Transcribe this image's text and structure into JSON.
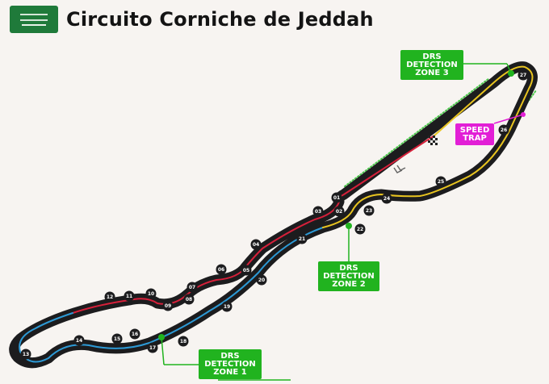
{
  "header": {
    "title": "Circuito Corniche de Jeddah",
    "flag": "saudi-arabia-flag"
  },
  "colors": {
    "track": "#1c1c1e",
    "sector1": "#d6203a",
    "sector2": "#2d9ad6",
    "sector3": "#e8c420",
    "drs": "#21b31f",
    "speed_trap": "#e21fd6",
    "background": "#f7f4f1"
  },
  "drs_zones": {
    "zone1": [
      "DRS",
      "DETECTION",
      "ZONE 1"
    ],
    "zone2": [
      "DRS",
      "DETECTION",
      "ZONE 2"
    ],
    "zone3": [
      "DRS",
      "DETECTION",
      "ZONE 3"
    ]
  },
  "speed_trap": [
    "SPEED",
    "TRAP"
  ],
  "turns": [
    "01",
    "02",
    "03",
    "04",
    "05",
    "06",
    "07",
    "08",
    "09",
    "10",
    "11",
    "12",
    "13",
    "14",
    "15",
    "16",
    "17",
    "18",
    "19",
    "20",
    "21",
    "22",
    "23",
    "24",
    "25",
    "26",
    "27"
  ]
}
